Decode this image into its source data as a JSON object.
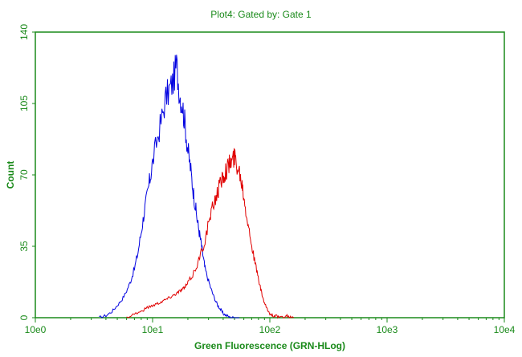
{
  "chart_data": {
    "type": "line",
    "title": "Plot4:  Gated by: Gate 1",
    "xlabel": "Green Fluorescence (GRN-HLog)",
    "ylabel": "Count",
    "xscale": "log",
    "xlim": [
      1,
      10000
    ],
    "ylim": [
      0,
      140
    ],
    "xticks": [
      "10e0",
      "10e1",
      "10e2",
      "10e3",
      "10e4"
    ],
    "yticks": [
      "0",
      "35",
      "70",
      "105",
      "140"
    ],
    "grid": false,
    "legend": "none",
    "axis_color": "#1a8a1a",
    "series": [
      {
        "color": "#0000e0",
        "x": [
          3.5,
          4.0,
          4.5,
          5.0,
          5.5,
          6.0,
          6.5,
          7.0,
          7.5,
          8.0,
          8.5,
          9.0,
          9.5,
          10,
          11,
          12,
          13,
          14,
          15,
          16,
          17,
          18,
          19,
          20,
          21,
          22,
          23,
          24,
          25,
          26,
          27,
          28,
          30,
          32,
          34,
          36,
          38,
          40,
          43,
          46,
          50,
          55
        ],
        "y": [
          0,
          1,
          3,
          6,
          9,
          13,
          18,
          24,
          32,
          42,
          52,
          60,
          68,
          76,
          88,
          98,
          108,
          112,
          116,
          124,
          110,
          104,
          94,
          82,
          74,
          64,
          56,
          48,
          42,
          36,
          30,
          24,
          18,
          13,
          9,
          6,
          4,
          2,
          1,
          0,
          0,
          0
        ]
      },
      {
        "color": "#e00000",
        "x": [
          6,
          7,
          8,
          9,
          10,
          11,
          12,
          13,
          14,
          15,
          16,
          17,
          18,
          19,
          20,
          22,
          24,
          26,
          28,
          30,
          32,
          34,
          36,
          38,
          40,
          42,
          44,
          46,
          48,
          50,
          52,
          55,
          58,
          60,
          63,
          66,
          70,
          74,
          78,
          82,
          86,
          90,
          95,
          100,
          106,
          112,
          120,
          130,
          140,
          150,
          160
        ],
        "y": [
          0,
          2,
          3,
          5,
          6,
          7,
          8,
          9,
          10,
          11,
          12,
          13,
          14,
          15,
          17,
          21,
          26,
          32,
          38,
          46,
          52,
          58,
          62,
          66,
          70,
          72,
          74,
          76,
          77,
          79,
          76,
          72,
          66,
          60,
          52,
          44,
          36,
          28,
          22,
          16,
          11,
          7,
          4,
          2,
          1,
          1,
          0,
          0,
          1,
          0,
          0
        ]
      }
    ]
  }
}
